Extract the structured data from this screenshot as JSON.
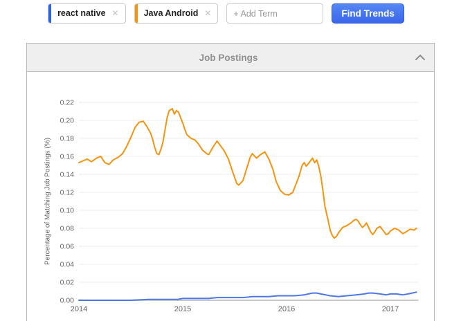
{
  "toolbar": {
    "terms": [
      {
        "label": "react native",
        "color": "#2c63e9",
        "remove_label": "✕"
      },
      {
        "label": "Java Android",
        "color": "#f6930d",
        "remove_label": "✕"
      }
    ],
    "add_term_placeholder": "+ Add Term",
    "find_trends_label": "Find Trends"
  },
  "panel": {
    "title": "Job Postings",
    "collapse_icon": "chevron-up"
  },
  "chart_data": {
    "type": "line",
    "title": "Job Postings",
    "xlabel": "",
    "ylabel": "Percentage of Matching Job Postings (%)",
    "xlim": [
      2014,
      2017.27
    ],
    "ylim": [
      0,
      0.22
    ],
    "yticks": [
      0,
      0.02,
      0.04,
      0.06,
      0.08,
      0.1,
      0.12,
      0.14,
      0.16,
      0.18,
      0.2,
      0.22
    ],
    "xticks": [
      2014,
      2015,
      2016,
      2017
    ],
    "grid": true,
    "legend_position": "none",
    "series": [
      {
        "name": "Java Android",
        "color": "#f6930d",
        "x": [
          2014.0,
          2014.04,
          2014.08,
          2014.12,
          2014.17,
          2014.21,
          2014.25,
          2014.29,
          2014.33,
          2014.38,
          2014.42,
          2014.46,
          2014.5,
          2014.54,
          2014.58,
          2014.62,
          2014.65,
          2014.69,
          2014.71,
          2014.73,
          2014.75,
          2014.77,
          2014.79,
          2014.81,
          2014.83,
          2014.85,
          2014.87,
          2014.9,
          2014.92,
          2014.94,
          2014.96,
          2014.98,
          2015.0,
          2015.02,
          2015.04,
          2015.08,
          2015.12,
          2015.15,
          2015.19,
          2015.23,
          2015.25,
          2015.29,
          2015.33,
          2015.35,
          2015.4,
          2015.44,
          2015.48,
          2015.52,
          2015.54,
          2015.58,
          2015.62,
          2015.65,
          2015.67,
          2015.71,
          2015.75,
          2015.79,
          2015.83,
          2015.87,
          2015.9,
          2015.94,
          2015.98,
          2016.02,
          2016.06,
          2016.08,
          2016.12,
          2016.15,
          2016.17,
          2016.19,
          2016.21,
          2016.23,
          2016.25,
          2016.27,
          2016.29,
          2016.31,
          2016.33,
          2016.35,
          2016.37,
          2016.4,
          2016.42,
          2016.44,
          2016.46,
          2016.48,
          2016.5,
          2016.52,
          2016.54,
          2016.58,
          2016.62,
          2016.65,
          2016.67,
          2016.69,
          2016.71,
          2016.73,
          2016.75,
          2016.77,
          2016.79,
          2016.81,
          2016.83,
          2016.85,
          2016.87,
          2016.9,
          2016.92,
          2016.94,
          2016.96,
          2016.98,
          2017.0,
          2017.04,
          2017.08,
          2017.12,
          2017.15,
          2017.19,
          2017.23,
          2017.25
        ],
        "values": [
          0.153,
          0.155,
          0.157,
          0.154,
          0.158,
          0.16,
          0.153,
          0.151,
          0.156,
          0.159,
          0.163,
          0.171,
          0.181,
          0.192,
          0.198,
          0.199,
          0.194,
          0.186,
          0.179,
          0.17,
          0.163,
          0.162,
          0.168,
          0.176,
          0.19,
          0.203,
          0.211,
          0.213,
          0.207,
          0.211,
          0.209,
          0.203,
          0.197,
          0.19,
          0.184,
          0.18,
          0.178,
          0.174,
          0.167,
          0.163,
          0.162,
          0.17,
          0.177,
          0.174,
          0.166,
          0.157,
          0.143,
          0.13,
          0.128,
          0.133,
          0.148,
          0.159,
          0.163,
          0.158,
          0.162,
          0.165,
          0.157,
          0.145,
          0.132,
          0.122,
          0.118,
          0.117,
          0.12,
          0.126,
          0.138,
          0.15,
          0.153,
          0.149,
          0.152,
          0.155,
          0.158,
          0.153,
          0.156,
          0.149,
          0.138,
          0.122,
          0.104,
          0.089,
          0.078,
          0.072,
          0.069,
          0.071,
          0.075,
          0.078,
          0.081,
          0.083,
          0.086,
          0.089,
          0.09,
          0.088,
          0.084,
          0.081,
          0.083,
          0.086,
          0.081,
          0.076,
          0.073,
          0.076,
          0.08,
          0.082,
          0.079,
          0.076,
          0.073,
          0.074,
          0.077,
          0.08,
          0.078,
          0.074,
          0.076,
          0.079,
          0.078,
          0.08
        ]
      },
      {
        "name": "react native",
        "color": "#4d77e8",
        "x": [
          2014.0,
          2014.17,
          2014.33,
          2014.5,
          2014.67,
          2014.83,
          2014.95,
          2015.0,
          2015.08,
          2015.17,
          2015.25,
          2015.33,
          2015.42,
          2015.5,
          2015.58,
          2015.67,
          2015.75,
          2015.83,
          2015.92,
          2016.0,
          2016.08,
          2016.17,
          2016.21,
          2016.25,
          2016.29,
          2016.33,
          2016.42,
          2016.5,
          2016.58,
          2016.67,
          2016.75,
          2016.79,
          2016.83,
          2016.9,
          2016.96,
          2017.0,
          2017.06,
          2017.12,
          2017.17,
          2017.21,
          2017.25
        ],
        "values": [
          0.0,
          0.0,
          0.0,
          0.0,
          0.001,
          0.001,
          0.001,
          0.002,
          0.002,
          0.002,
          0.002,
          0.003,
          0.003,
          0.003,
          0.003,
          0.004,
          0.004,
          0.004,
          0.005,
          0.005,
          0.005,
          0.006,
          0.007,
          0.008,
          0.008,
          0.007,
          0.005,
          0.004,
          0.005,
          0.006,
          0.007,
          0.008,
          0.008,
          0.007,
          0.006,
          0.007,
          0.007,
          0.006,
          0.007,
          0.008,
          0.009
        ]
      }
    ]
  }
}
